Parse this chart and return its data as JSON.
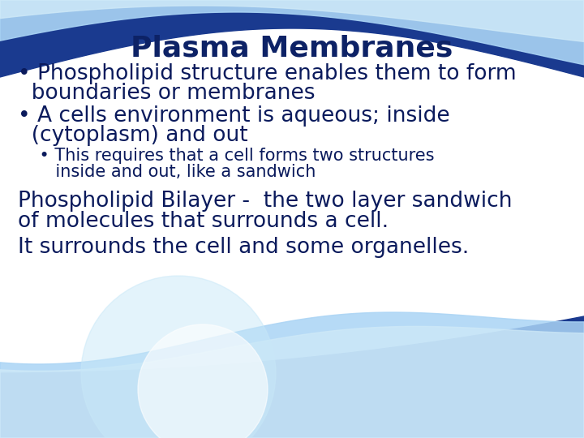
{
  "title": "Plasma Membranes",
  "title_color": "#0d2266",
  "title_fontsize": 26,
  "bg_color": "#ffffff",
  "dark_blue": "#1a3a8f",
  "light_blue": "#aad4f5",
  "mid_blue": "#5ba3d9",
  "text_color": "#0a1a5c",
  "bullet1_line1": "• Phospholipid structure enables them to form",
  "bullet1_line2": "  boundaries or membranes",
  "bullet2_line1": "• A cells environment is aqueous; inside",
  "bullet2_line2": "  (cytoplasm) and out",
  "sub_bullet_line1": "    • This requires that a cell forms two structures",
  "sub_bullet_line2": "       inside and out, like a sandwich",
  "para1_line1": "Phospholipid Bilayer -  the two layer sandwich",
  "para1_line2": "of molecules that surrounds a cell.",
  "para2": "It surrounds the cell and some organelles.",
  "main_fontsize": 19,
  "sub_fontsize": 15,
  "para_fontsize": 19
}
